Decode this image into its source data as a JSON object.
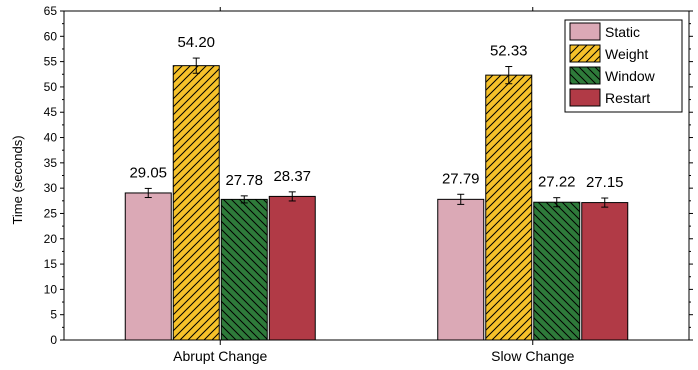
{
  "chart_data": {
    "type": "bar",
    "ylabel": "Time (seconds)",
    "xlabel": "",
    "title": "",
    "categories": [
      "Abrupt Change",
      "Slow Change"
    ],
    "ylim": [
      0,
      65
    ],
    "yticks": [
      0,
      5,
      10,
      15,
      20,
      25,
      30,
      35,
      40,
      45,
      50,
      55,
      60,
      65
    ],
    "legend_position": "top-right",
    "grid": false,
    "series": [
      {
        "name": "Static",
        "values": [
          29.05,
          27.79
        ],
        "errors": [
          0.9,
          1.0
        ],
        "labels": [
          "29.05",
          "27.79"
        ],
        "color": "#dba9b6",
        "pattern": "solid"
      },
      {
        "name": "Weight",
        "values": [
          54.2,
          52.33
        ],
        "errors": [
          1.5,
          1.7
        ],
        "labels": [
          "54.20",
          "52.33"
        ],
        "color": "#f6c12a",
        "pattern": "hatch-forward"
      },
      {
        "name": "Window",
        "values": [
          27.78,
          27.22
        ],
        "errors": [
          0.7,
          0.9
        ],
        "labels": [
          "27.78",
          "27.22"
        ],
        "color": "#2e7a3a",
        "pattern": "hatch-backward"
      },
      {
        "name": "Restart",
        "values": [
          28.37,
          27.15
        ],
        "errors": [
          0.9,
          0.9
        ],
        "labels": [
          "28.37",
          "27.15"
        ],
        "color": "#b13a46",
        "pattern": "solid"
      }
    ]
  }
}
